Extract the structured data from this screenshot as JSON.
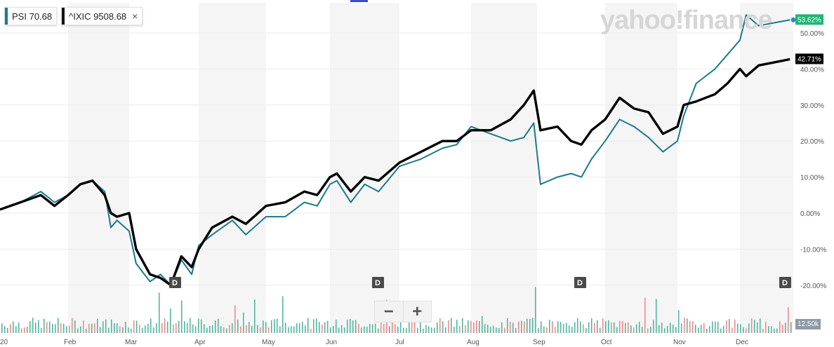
{
  "legend": {
    "psi": {
      "symbol": "PSI",
      "value": "70.68",
      "color": "#1a7a8a"
    },
    "ixic": {
      "symbol": "^IXIC",
      "value": "9508.68",
      "color": "#111111",
      "close": "×"
    }
  },
  "brand": "yahoo!finance",
  "zoom": {
    "minus": "−",
    "plus": "+"
  },
  "volume_label": "12.50k",
  "chart_data": {
    "type": "line",
    "yaxis": {
      "min": -22,
      "max": 56,
      "ticks": [
        50,
        40,
        30,
        20,
        10,
        0,
        -10,
        -20
      ],
      "tick_labels": [
        "50.00%",
        "40.00%",
        "30.00%",
        "20.00%",
        "10.00%",
        "0.00%",
        "-10.00%",
        "-20.00%"
      ],
      "side": "right"
    },
    "xaxis": {
      "labels": [
        "20",
        "Feb",
        "Mar",
        "Apr",
        "May",
        "Jun",
        "Jul",
        "Aug",
        "Sep",
        "Oct",
        "Nov",
        "Dec"
      ],
      "positions": [
        0,
        1,
        2,
        3,
        4,
        5,
        6,
        7,
        8,
        9,
        10,
        11
      ]
    },
    "series": [
      {
        "name": "PSI",
        "color": "#1a7a8a",
        "last_label": "53.62%",
        "points": [
          [
            0,
            1
          ],
          [
            0.3,
            3
          ],
          [
            0.6,
            6
          ],
          [
            0.8,
            3
          ],
          [
            1.0,
            5
          ],
          [
            1.2,
            8
          ],
          [
            1.4,
            9
          ],
          [
            1.6,
            6
          ],
          [
            1.7,
            -4
          ],
          [
            1.8,
            -2
          ],
          [
            2.0,
            -5
          ],
          [
            2.1,
            -14
          ],
          [
            2.3,
            -19
          ],
          [
            2.45,
            -17
          ],
          [
            2.6,
            -20
          ],
          [
            2.75,
            -13
          ],
          [
            2.9,
            -17
          ],
          [
            3.0,
            -9
          ],
          [
            3.2,
            -6
          ],
          [
            3.5,
            -2
          ],
          [
            3.7,
            -6
          ],
          [
            4.0,
            -1
          ],
          [
            4.3,
            -1
          ],
          [
            4.6,
            3
          ],
          [
            4.8,
            2
          ],
          [
            5.0,
            8
          ],
          [
            5.1,
            9
          ],
          [
            5.3,
            3
          ],
          [
            5.5,
            8
          ],
          [
            5.7,
            6
          ],
          [
            6.0,
            13
          ],
          [
            6.3,
            15
          ],
          [
            6.6,
            18
          ],
          [
            6.8,
            19
          ],
          [
            7.0,
            24
          ],
          [
            7.3,
            22
          ],
          [
            7.6,
            20
          ],
          [
            7.8,
            21
          ],
          [
            7.95,
            25
          ],
          [
            8.05,
            8
          ],
          [
            8.3,
            10
          ],
          [
            8.5,
            11
          ],
          [
            8.65,
            10
          ],
          [
            8.8,
            15
          ],
          [
            9.0,
            20
          ],
          [
            9.2,
            26
          ],
          [
            9.4,
            24
          ],
          [
            9.6,
            21
          ],
          [
            9.8,
            17
          ],
          [
            10.0,
            20
          ],
          [
            10.1,
            27
          ],
          [
            10.3,
            36
          ],
          [
            10.6,
            40
          ],
          [
            10.8,
            44
          ],
          [
            11.0,
            48
          ],
          [
            11.1,
            55
          ],
          [
            11.3,
            52
          ],
          [
            11.6,
            53
          ],
          [
            11.8,
            53.62
          ]
        ]
      },
      {
        "name": "^IXIC",
        "color": "#000000",
        "last_label": "42.71%",
        "points": [
          [
            0,
            1
          ],
          [
            0.3,
            3
          ],
          [
            0.6,
            5
          ],
          [
            0.8,
            2
          ],
          [
            1.0,
            5
          ],
          [
            1.2,
            8
          ],
          [
            1.4,
            9
          ],
          [
            1.6,
            5
          ],
          [
            1.7,
            0
          ],
          [
            1.8,
            -1
          ],
          [
            2.0,
            0
          ],
          [
            2.1,
            -10
          ],
          [
            2.3,
            -17
          ],
          [
            2.45,
            -18
          ],
          [
            2.6,
            -20
          ],
          [
            2.75,
            -12
          ],
          [
            2.9,
            -15
          ],
          [
            3.0,
            -10
          ],
          [
            3.2,
            -4
          ],
          [
            3.5,
            -1
          ],
          [
            3.7,
            -3
          ],
          [
            4.0,
            2
          ],
          [
            4.3,
            3
          ],
          [
            4.6,
            6
          ],
          [
            4.8,
            5
          ],
          [
            5.0,
            10
          ],
          [
            5.1,
            11
          ],
          [
            5.3,
            6
          ],
          [
            5.5,
            10
          ],
          [
            5.7,
            9
          ],
          [
            6.0,
            14
          ],
          [
            6.3,
            17
          ],
          [
            6.6,
            20
          ],
          [
            6.8,
            20
          ],
          [
            7.0,
            23
          ],
          [
            7.3,
            23
          ],
          [
            7.6,
            26
          ],
          [
            7.8,
            30
          ],
          [
            7.95,
            34
          ],
          [
            8.05,
            23
          ],
          [
            8.3,
            24
          ],
          [
            8.5,
            20
          ],
          [
            8.65,
            19
          ],
          [
            8.8,
            23
          ],
          [
            9.0,
            26
          ],
          [
            9.2,
            32
          ],
          [
            9.4,
            29
          ],
          [
            9.6,
            28
          ],
          [
            9.8,
            22
          ],
          [
            10.0,
            24
          ],
          [
            10.1,
            30
          ],
          [
            10.3,
            31
          ],
          [
            10.6,
            33
          ],
          [
            10.8,
            36
          ],
          [
            11.0,
            40
          ],
          [
            11.1,
            38
          ],
          [
            11.3,
            41
          ],
          [
            11.6,
            42
          ],
          [
            11.8,
            42.71
          ]
        ]
      }
    ]
  }
}
